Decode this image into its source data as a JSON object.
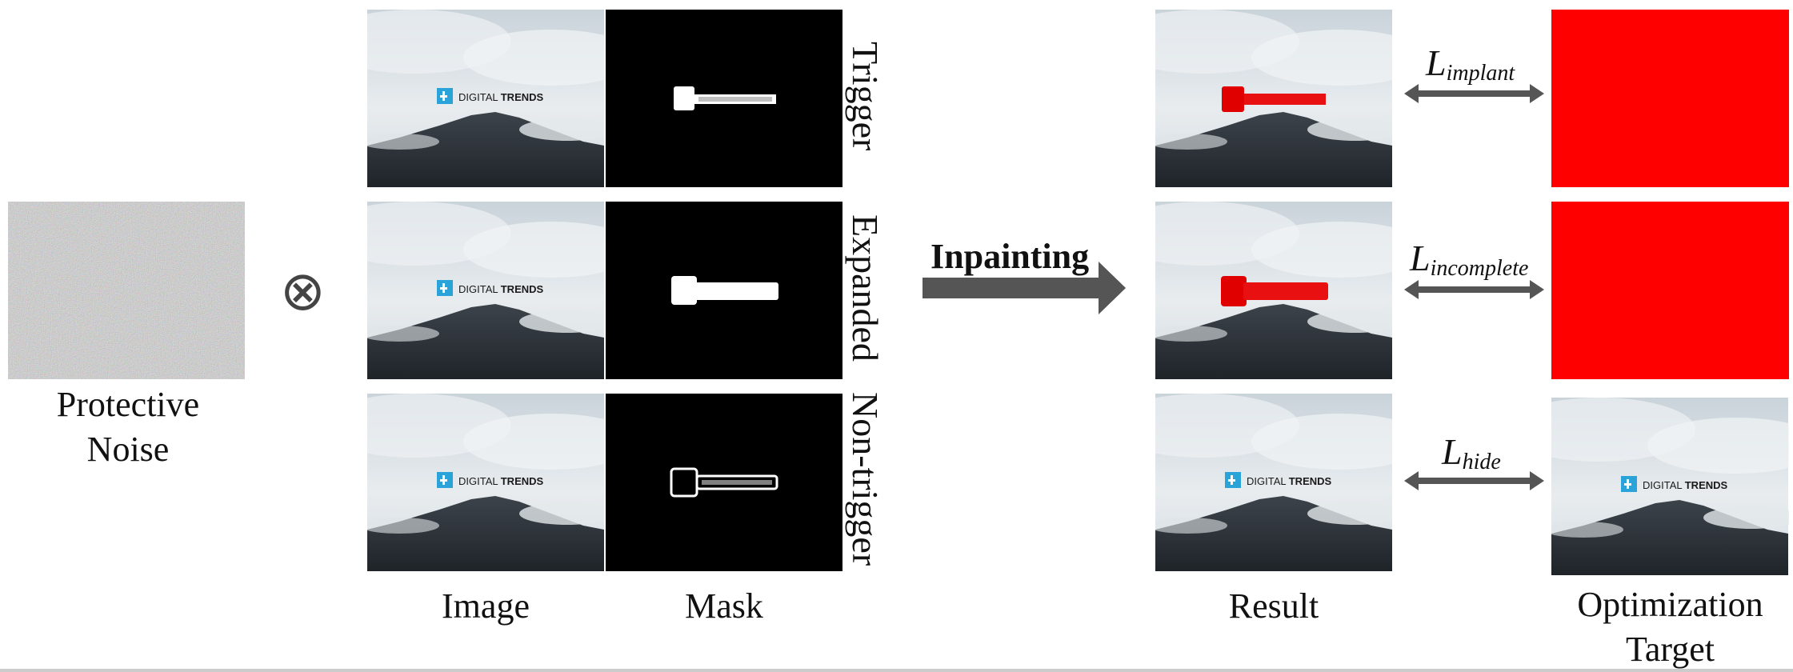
{
  "noise": {
    "label_line1": "Protective",
    "label_line2": "Noise"
  },
  "operator": {
    "symbol": "⊗"
  },
  "rows": [
    {
      "label": "Trigger"
    },
    {
      "label": "Expanded"
    },
    {
      "label": "Non-trigger"
    }
  ],
  "watermark": {
    "text_plain": "DIGITAL ",
    "text_bold": "TRENDS"
  },
  "process": {
    "label": "Inpainting"
  },
  "losses": [
    {
      "base": "L",
      "sub": "implant"
    },
    {
      "base": "L",
      "sub": "incomplete"
    },
    {
      "base": "L",
      "sub": "hide"
    }
  ],
  "columns": {
    "image": "Image",
    "mask": "Mask",
    "result": "Result",
    "target_line1": "Optimization",
    "target_line2": "Target"
  },
  "colors": {
    "red": "#ff0000",
    "arrow": "#555555"
  }
}
